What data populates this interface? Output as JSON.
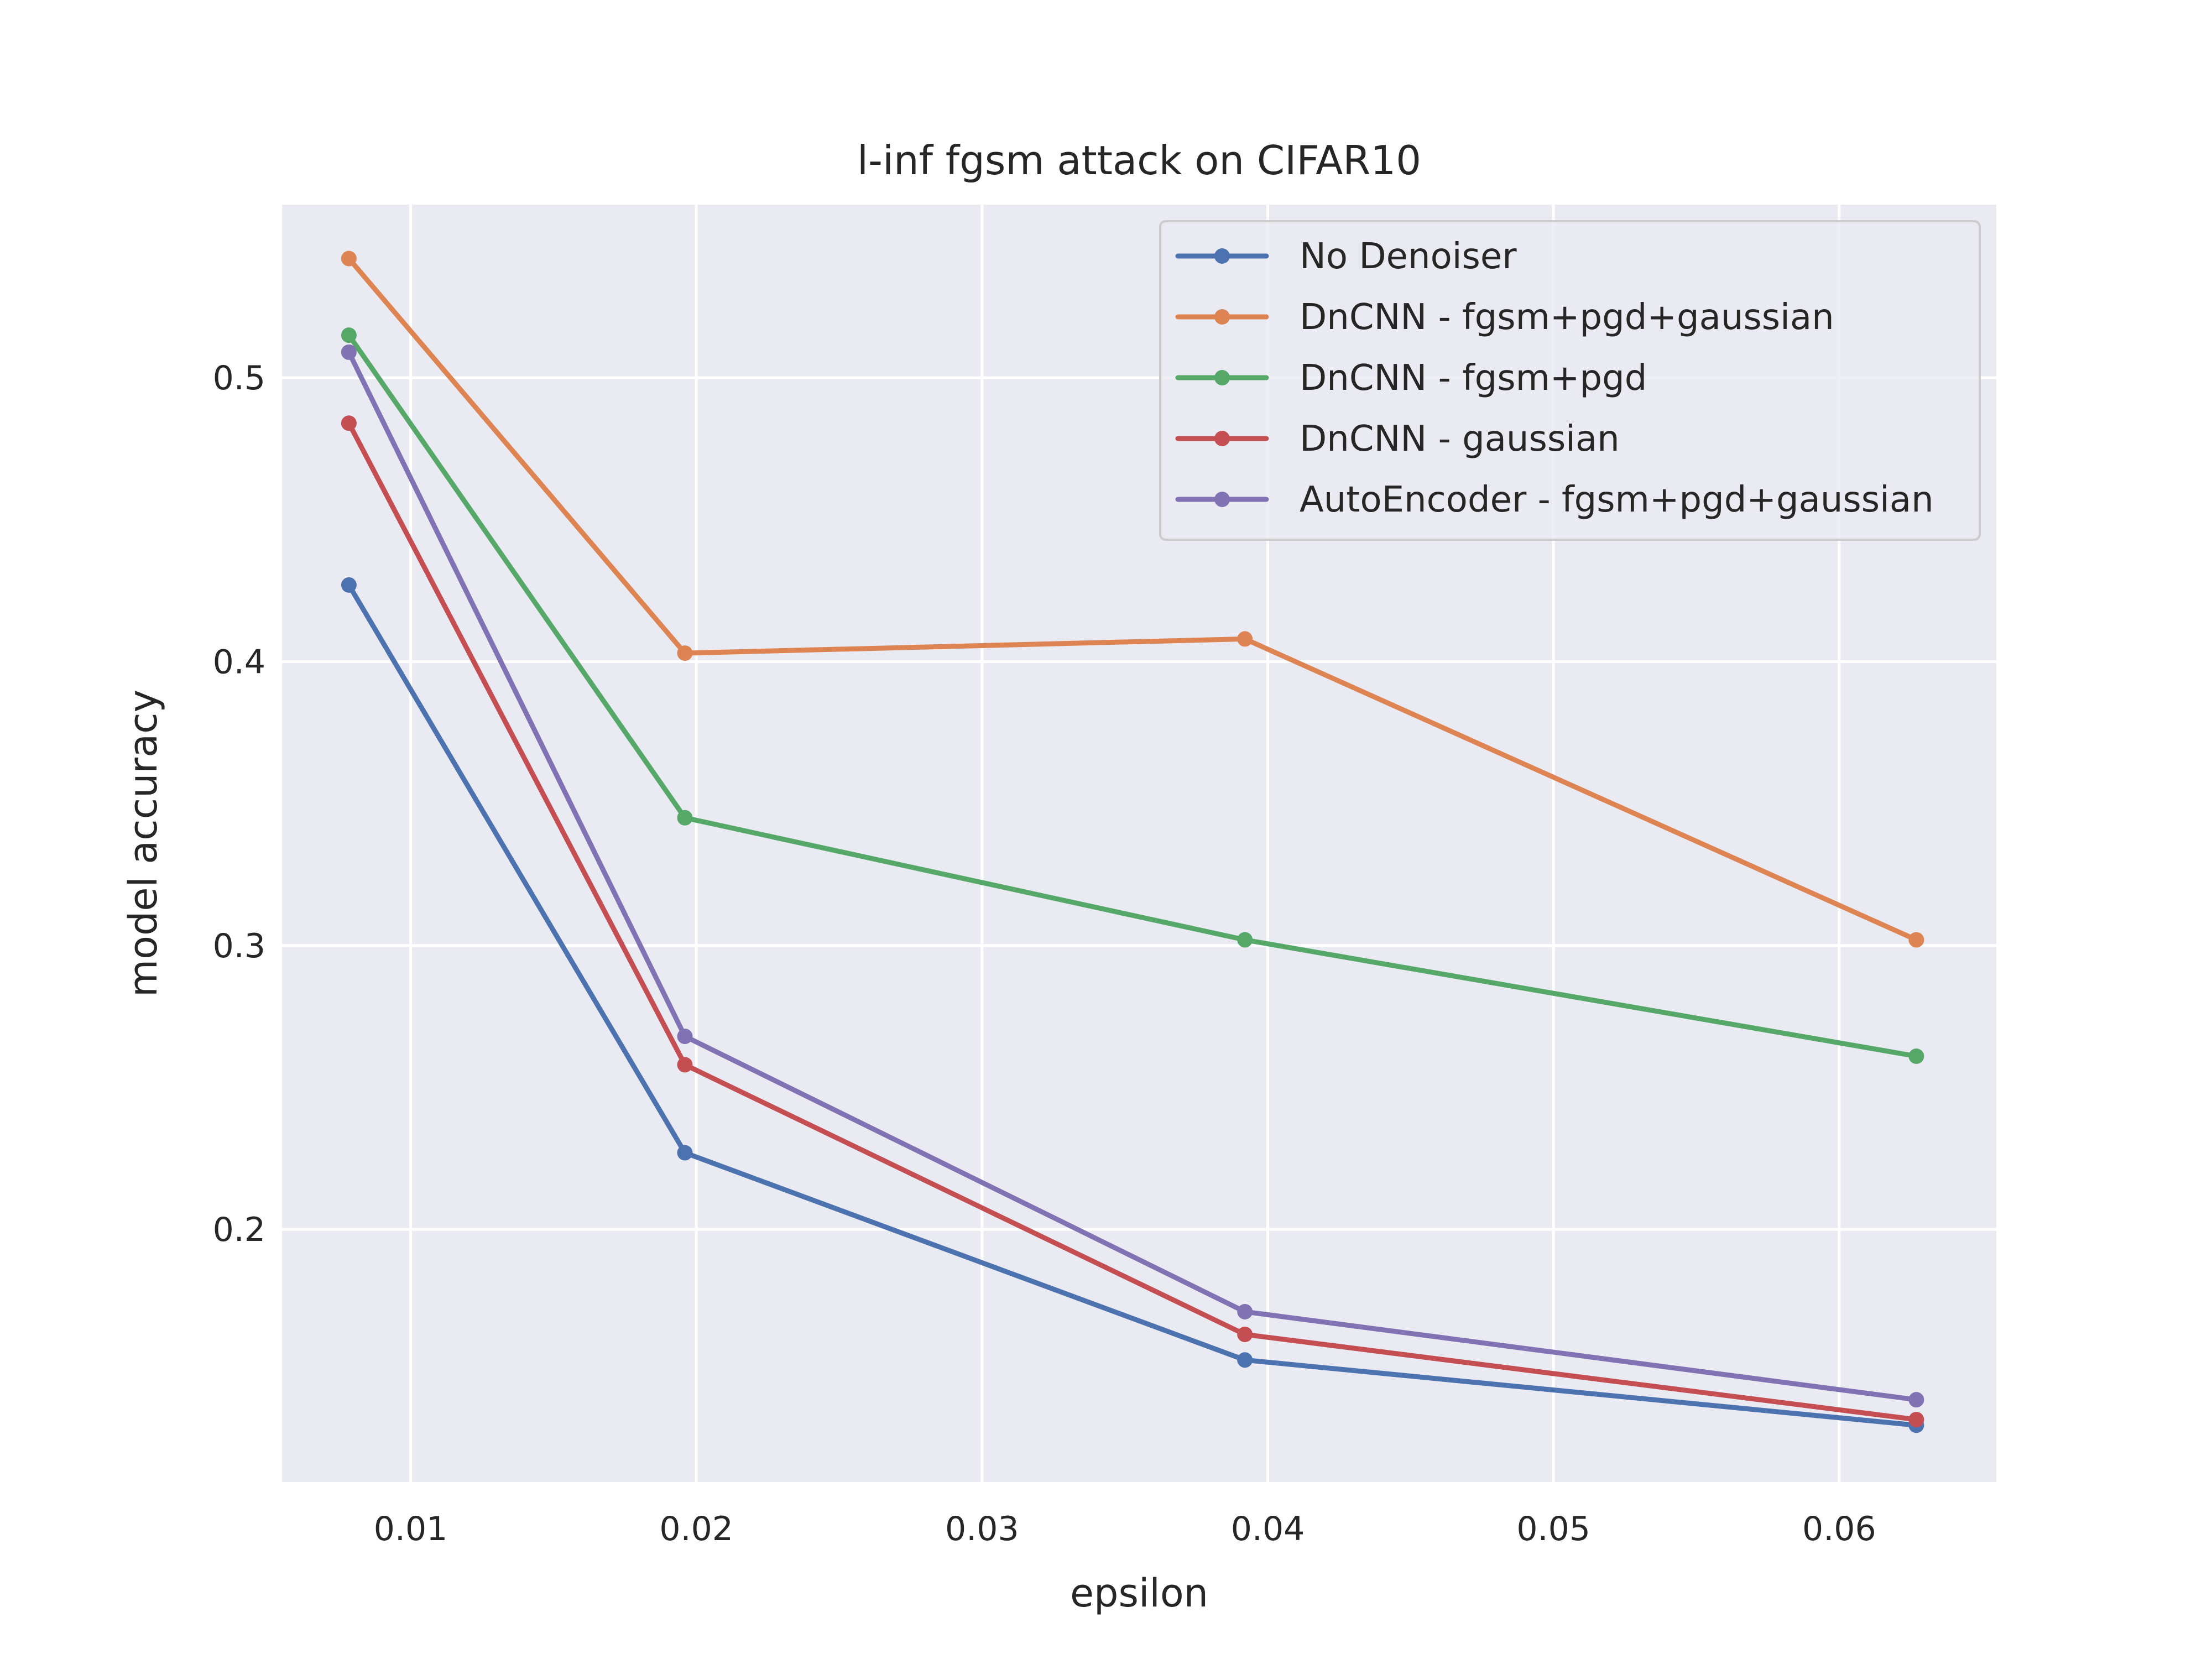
{
  "chart_data": {
    "type": "line",
    "title": "l-inf fgsm attack on CIFAR10",
    "xlabel": "epsilon",
    "ylabel": "model accuracy",
    "xlim": [
      0.0055,
      0.0655
    ],
    "ylim": [
      0.111,
      0.561
    ],
    "xticks": [
      0.01,
      0.02,
      0.03,
      0.04,
      0.05,
      0.06
    ],
    "xtick_labels": [
      "0.01",
      "0.02",
      "0.03",
      "0.04",
      "0.05",
      "0.06"
    ],
    "yticks": [
      0.2,
      0.3,
      0.4,
      0.5
    ],
    "ytick_labels": [
      "0.2",
      "0.3",
      "0.4",
      "0.5"
    ],
    "grid": true,
    "legend_position": "top-right",
    "x": [
      0.00784,
      0.0196,
      0.0392,
      0.0627
    ],
    "series": [
      {
        "name": "No Denoiser",
        "color": "#4c72b0",
        "values": [
          0.427,
          0.227,
          0.154,
          0.131
        ]
      },
      {
        "name": "DnCNN - fgsm+pgd+gaussian",
        "color": "#dd8452",
        "values": [
          0.542,
          0.403,
          0.408,
          0.302
        ]
      },
      {
        "name": "DnCNN - fgsm+pgd",
        "color": "#55a868",
        "values": [
          0.515,
          0.345,
          0.302,
          0.261
        ]
      },
      {
        "name": "DnCNN - gaussian",
        "color": "#c44e52",
        "values": [
          0.484,
          0.258,
          0.163,
          0.133
        ]
      },
      {
        "name": "AutoEncoder - fgsm+pgd+gaussian",
        "color": "#8172b3",
        "values": [
          0.509,
          0.268,
          0.171,
          0.14
        ]
      }
    ]
  }
}
